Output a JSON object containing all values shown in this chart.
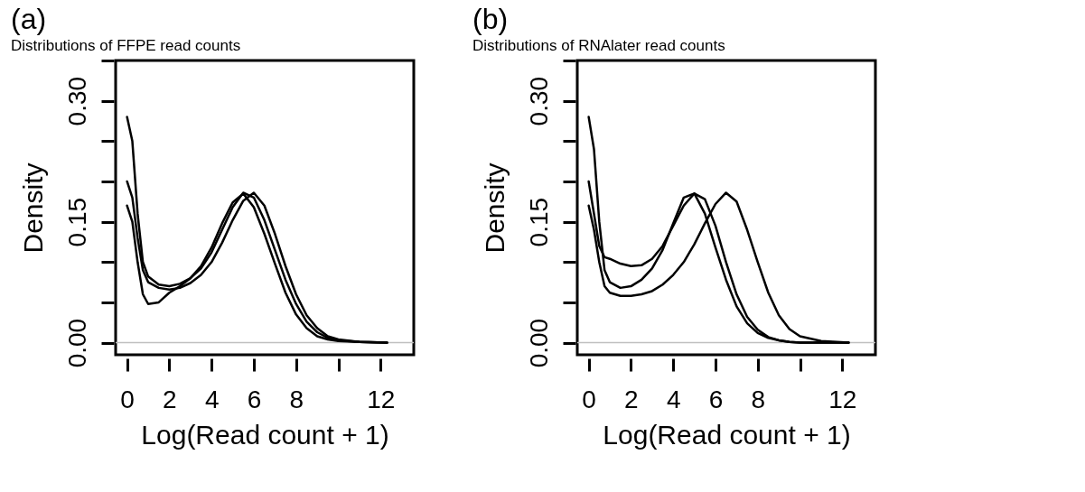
{
  "chart_data": [
    {
      "type": "line",
      "title": "(a)",
      "subtitle": "Distributions of FFPE read counts",
      "xlabel": "Log(Read count + 1)",
      "ylabel": "Density",
      "line_style": "solid",
      "x": [
        0,
        0.25,
        0.5,
        0.75,
        1,
        1.5,
        2,
        2.5,
        3,
        3.5,
        4,
        4.5,
        5,
        5.5,
        6,
        6.5,
        7,
        7.5,
        8,
        8.5,
        9,
        9.5,
        10,
        11,
        12.3
      ],
      "series": [
        {
          "color": "#000000",
          "values": [
            0.28,
            0.25,
            0.16,
            0.1,
            0.082,
            0.072,
            0.07,
            0.073,
            0.08,
            0.092,
            0.112,
            0.14,
            0.168,
            0.186,
            0.18,
            0.152,
            0.115,
            0.078,
            0.048,
            0.026,
            0.013,
            0.006,
            0.003,
            0.001,
            0
          ]
        },
        {
          "color": "#000000",
          "values": [
            0.2,
            0.18,
            0.13,
            0.09,
            0.075,
            0.068,
            0.066,
            0.068,
            0.074,
            0.084,
            0.1,
            0.124,
            0.152,
            0.176,
            0.186,
            0.17,
            0.135,
            0.095,
            0.06,
            0.034,
            0.018,
            0.008,
            0.004,
            0.001,
            0
          ]
        },
        {
          "color": "#000000",
          "values": [
            0.17,
            0.15,
            0.1,
            0.06,
            0.048,
            0.05,
            0.062,
            0.07,
            0.08,
            0.095,
            0.118,
            0.148,
            0.174,
            0.185,
            0.168,
            0.135,
            0.098,
            0.062,
            0.035,
            0.018,
            0.008,
            0.004,
            0.002,
            0.001,
            0
          ]
        }
      ],
      "xlim": [
        -0.54,
        13.57
      ],
      "ylim": [
        -0.015,
        0.35
      ],
      "xticks": [
        0,
        2,
        4,
        6,
        8,
        {
          "value": 10,
          "label": null
        },
        12
      ],
      "yticks": [
        {
          "value": 0,
          "label": "0.00"
        },
        {
          "value": 0.05,
          "label": null
        },
        {
          "value": 0.1,
          "label": null
        },
        {
          "value": 0.15,
          "label": "0.15"
        },
        {
          "value": 0.2,
          "label": null
        },
        {
          "value": 0.25,
          "label": null
        },
        {
          "value": 0.3,
          "label": "0.30"
        },
        {
          "value": 0.35,
          "label": null
        }
      ],
      "ref_lines": [
        {
          "axis": "y",
          "value": 0,
          "color": "#c0c0c0"
        }
      ]
    },
    {
      "type": "line",
      "title": "(b)",
      "subtitle": "Distributions of RNAlater read counts",
      "xlabel": "Log(Read count + 1)",
      "ylabel": "Density",
      "line_style": "solid",
      "x": [
        0,
        0.25,
        0.5,
        0.75,
        1,
        1.5,
        2,
        2.5,
        3,
        3.5,
        4,
        4.5,
        5,
        5.5,
        6,
        6.5,
        7,
        7.5,
        8,
        8.5,
        9,
        9.5,
        10,
        11,
        12.3
      ],
      "series": [
        {
          "color": "#000000",
          "values": [
            0.28,
            0.24,
            0.15,
            0.09,
            0.075,
            0.068,
            0.07,
            0.078,
            0.092,
            0.115,
            0.148,
            0.18,
            0.185,
            0.16,
            0.118,
            0.078,
            0.045,
            0.024,
            0.012,
            0.006,
            0.003,
            0.001,
            0,
            0,
            0
          ]
        },
        {
          "color": "#000000",
          "values": [
            0.2,
            0.16,
            0.12,
            0.106,
            0.104,
            0.098,
            0.095,
            0.096,
            0.104,
            0.12,
            0.145,
            0.17,
            0.185,
            0.178,
            0.145,
            0.1,
            0.06,
            0.032,
            0.016,
            0.007,
            0.003,
            0.001,
            0,
            0,
            0
          ]
        },
        {
          "color": "#000000",
          "values": [
            0.17,
            0.14,
            0.1,
            0.07,
            0.062,
            0.058,
            0.058,
            0.06,
            0.064,
            0.072,
            0.084,
            0.1,
            0.122,
            0.148,
            0.172,
            0.186,
            0.175,
            0.14,
            0.1,
            0.062,
            0.034,
            0.017,
            0.008,
            0.002,
            0
          ]
        }
      ],
      "xlim": [
        -0.54,
        13.57
      ],
      "ylim": [
        -0.015,
        0.35
      ],
      "xticks": [
        0,
        2,
        4,
        6,
        8,
        {
          "value": 10,
          "label": null
        },
        12
      ],
      "yticks": [
        {
          "value": 0,
          "label": "0.00"
        },
        {
          "value": 0.05,
          "label": null
        },
        {
          "value": 0.1,
          "label": null
        },
        {
          "value": 0.15,
          "label": "0.15"
        },
        {
          "value": 0.2,
          "label": null
        },
        {
          "value": 0.25,
          "label": null
        },
        {
          "value": 0.3,
          "label": "0.30"
        },
        {
          "value": 0.35,
          "label": null
        }
      ],
      "ref_lines": [
        {
          "axis": "y",
          "value": 0,
          "color": "#c0c0c0"
        }
      ]
    }
  ]
}
